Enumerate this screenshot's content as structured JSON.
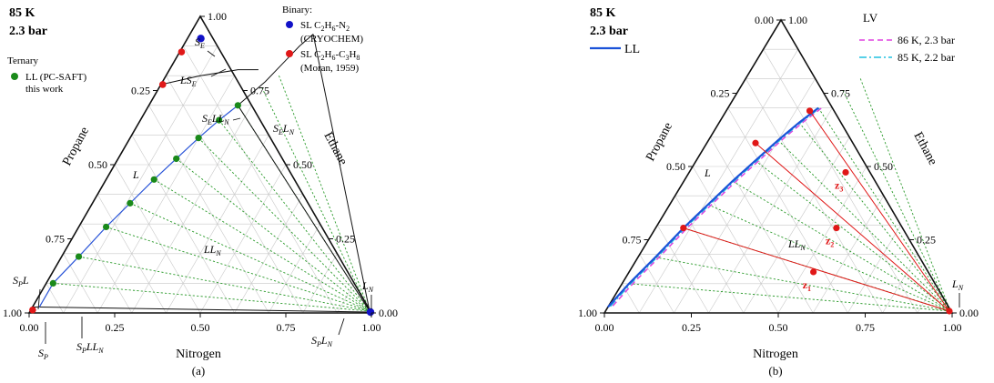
{
  "chart_data": [
    {
      "type": "ternary",
      "panel_label": "(a)",
      "conditions": {
        "temperature": "85 K",
        "pressure": "2.3 bar"
      },
      "axes": {
        "bottom": {
          "label": "Nitrogen",
          "ticks": [
            "0.00",
            "0.25",
            "0.50",
            "0.75",
            "1.00"
          ]
        },
        "left": {
          "label": "Propane",
          "ticks": [
            "0.25",
            "0.50",
            "0.75",
            "1.00"
          ]
        },
        "right": {
          "label": "Ethane",
          "ticks": [
            "0.00",
            "0.25",
            "0.50",
            "0.75",
            "1.00"
          ]
        }
      },
      "legend": {
        "ternary_title": "Ternary",
        "ternary_entry": "LL (PC-SAFT)",
        "ternary_entry2": "this work",
        "binary_title": "Binary:",
        "binary_entries": [
          {
            "label": "SL C2H6-N2",
            "sub": "(CRYOCHEM)",
            "color": "#1212c8"
          },
          {
            "label": "SL C2H6-C3H8",
            "sub": "(Moran, 1959)",
            "color": "#e01818"
          }
        ]
      },
      "region_labels": [
        "SE",
        "LSE",
        "SELLN",
        "SELN",
        "L",
        "LLN",
        "SPL",
        "SP",
        "SPLLN",
        "SPLN",
        "LN"
      ],
      "series": [
        {
          "name": "LL (PC-SAFT) this work",
          "color": "#1a8a1a",
          "points": [
            [
              0.02,
              0.1
            ],
            [
              0.05,
              0.19
            ],
            [
              0.08,
              0.29
            ],
            [
              0.11,
              0.37
            ],
            [
              0.14,
              0.45
            ],
            [
              0.17,
              0.52
            ],
            [
              0.2,
              0.59
            ],
            [
              0.23,
              0.65
            ],
            [
              0.26,
              0.7
            ]
          ]
        },
        {
          "name": "SL C2H6-N2 (CRYOCHEM)",
          "color": "#1212c8",
          "points": [
            [
              0.0,
              0.95
            ],
            [
              1.0,
              0.0
            ]
          ]
        },
        {
          "name": "SL C2H6-C3H8 (Moran, 1959)",
          "color": "#e01818",
          "points": [
            [
              0.0,
              0.88
            ],
            [
              0.0,
              0.77
            ],
            [
              0.0,
              0.01
            ]
          ]
        }
      ],
      "tie_line_colors": {
        "tie": "#2a9a2a",
        "boundary": "#111111",
        "grid": "#c8c8c8"
      }
    },
    {
      "type": "ternary",
      "panel_label": "(b)",
      "conditions": {
        "temperature": "85 K",
        "pressure": "2.3 bar"
      },
      "axes": {
        "bottom": {
          "label": "Nitrogen",
          "ticks": [
            "0.00",
            "0.25",
            "0.50",
            "0.75",
            "1.00"
          ]
        },
        "left": {
          "label": "Propane",
          "ticks": [
            "0.00",
            "0.25",
            "0.50",
            "0.75",
            "1.00"
          ]
        },
        "right": {
          "label": "Ethane",
          "ticks": [
            "0.00",
            "0.25",
            "0.50",
            "0.75",
            "1.00"
          ]
        }
      },
      "legend": {
        "ll_label": "LL",
        "lv_title": "LV",
        "lv_entries": [
          {
            "label": "86 K, 2.3 bar",
            "color": "#e040e0",
            "dash": "6,4"
          },
          {
            "label": "85 K, 2.2 bar",
            "color": "#20c0e0",
            "dash": "8,3,2,3"
          }
        ]
      },
      "region_labels": [
        "L",
        "LLN",
        "LN"
      ],
      "feed_labels": [
        "z1",
        "z2",
        "z3"
      ],
      "series": [
        {
          "name": "LL",
          "color": "#1a52d8",
          "points": [
            [
              0.02,
              0.1
            ],
            [
              0.05,
              0.19
            ],
            [
              0.08,
              0.29
            ],
            [
              0.11,
              0.37
            ],
            [
              0.14,
              0.45
            ],
            [
              0.17,
              0.52
            ],
            [
              0.2,
              0.59
            ],
            [
              0.23,
              0.65
            ],
            [
              0.26,
              0.7
            ]
          ]
        },
        {
          "name": "feed tie-lines",
          "color": "#e01818",
          "tie_points": [
            [
              0.08,
              0.29
            ],
            [
              0.14,
              0.58
            ],
            [
              0.24,
              0.69
            ]
          ],
          "feeds": [
            [
              0.53,
              0.14
            ],
            [
              0.52,
              0.29
            ],
            [
              0.45,
              0.48
            ]
          ]
        }
      ],
      "tie_line_colors": {
        "tie": "#2a9a2a",
        "grid": "#c8c8c8"
      }
    }
  ]
}
